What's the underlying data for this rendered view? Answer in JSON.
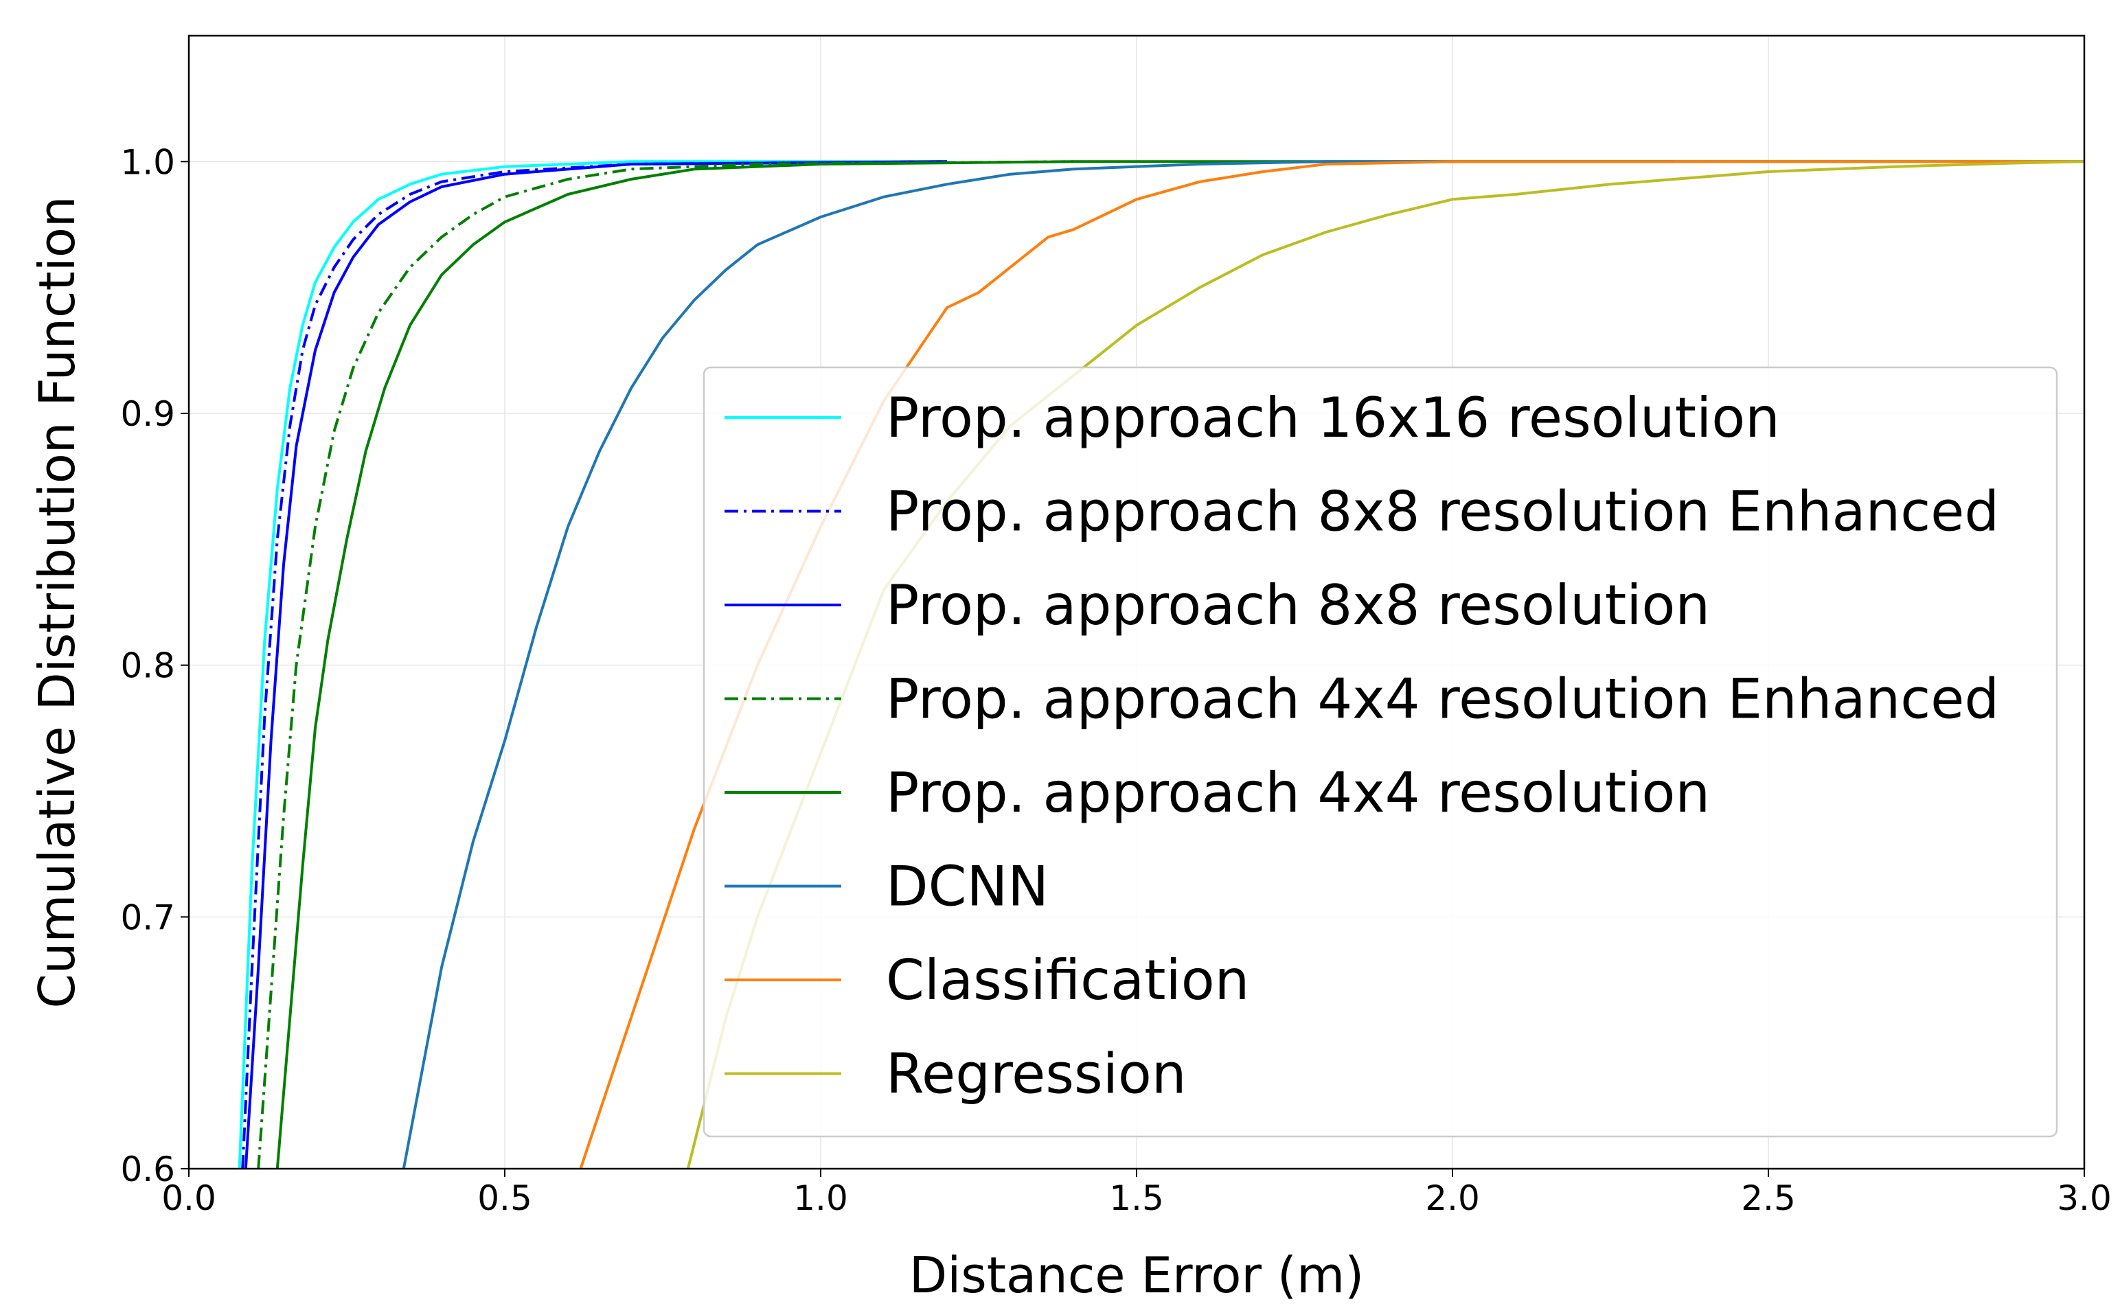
{
  "chart_data": {
    "type": "line",
    "title": "",
    "xlabel": "Distance Error (m)",
    "ylabel": "Cumulative Distribution Function",
    "xlim": [
      0.0,
      3.0
    ],
    "ylim": [
      0.6,
      1.05
    ],
    "xticks": [
      "0.0",
      "0.5",
      "1.0",
      "1.5",
      "2.0",
      "2.5",
      "3.0"
    ],
    "yticks": [
      "0.6",
      "0.7",
      "0.8",
      "0.9",
      "1.0"
    ],
    "grid": true,
    "legend_position": "lower right",
    "series": [
      {
        "name": "Prop. approach 16x16 resolution",
        "color": "#00ffff",
        "dash": "solid",
        "points": [
          [
            0.08,
            0.6
          ],
          [
            0.1,
            0.72
          ],
          [
            0.12,
            0.81
          ],
          [
            0.14,
            0.87
          ],
          [
            0.16,
            0.91
          ],
          [
            0.18,
            0.935
          ],
          [
            0.2,
            0.952
          ],
          [
            0.23,
            0.966
          ],
          [
            0.26,
            0.976
          ],
          [
            0.3,
            0.985
          ],
          [
            0.35,
            0.991
          ],
          [
            0.4,
            0.995
          ],
          [
            0.5,
            0.998
          ],
          [
            0.7,
            1.0
          ],
          [
            1.2,
            1.0
          ]
        ]
      },
      {
        "name": "Prop. approach 8x8 resolution Enhanced",
        "color": "#0000ff",
        "dash": "dashdot",
        "points": [
          [
            0.085,
            0.6
          ],
          [
            0.1,
            0.68
          ],
          [
            0.12,
            0.78
          ],
          [
            0.14,
            0.85
          ],
          [
            0.16,
            0.895
          ],
          [
            0.18,
            0.925
          ],
          [
            0.2,
            0.943
          ],
          [
            0.23,
            0.958
          ],
          [
            0.26,
            0.969
          ],
          [
            0.3,
            0.979
          ],
          [
            0.35,
            0.987
          ],
          [
            0.4,
            0.992
          ],
          [
            0.5,
            0.996
          ],
          [
            0.7,
            0.999
          ],
          [
            1.2,
            1.0
          ]
        ]
      },
      {
        "name": "Prop. approach 8x8 resolution",
        "color": "#0000ff",
        "dash": "solid",
        "points": [
          [
            0.09,
            0.6
          ],
          [
            0.11,
            0.68
          ],
          [
            0.13,
            0.77
          ],
          [
            0.15,
            0.84
          ],
          [
            0.17,
            0.887
          ],
          [
            0.2,
            0.925
          ],
          [
            0.23,
            0.948
          ],
          [
            0.26,
            0.962
          ],
          [
            0.3,
            0.975
          ],
          [
            0.35,
            0.984
          ],
          [
            0.4,
            0.99
          ],
          [
            0.5,
            0.995
          ],
          [
            0.7,
            0.999
          ],
          [
            1.2,
            1.0
          ]
        ]
      },
      {
        "name": "Prop. approach 4x4 resolution Enhanced",
        "color": "#008000",
        "dash": "dashdot",
        "points": [
          [
            0.11,
            0.6
          ],
          [
            0.13,
            0.67
          ],
          [
            0.15,
            0.74
          ],
          [
            0.17,
            0.8
          ],
          [
            0.2,
            0.855
          ],
          [
            0.23,
            0.893
          ],
          [
            0.26,
            0.918
          ],
          [
            0.3,
            0.94
          ],
          [
            0.35,
            0.958
          ],
          [
            0.4,
            0.97
          ],
          [
            0.45,
            0.979
          ],
          [
            0.5,
            0.986
          ],
          [
            0.6,
            0.993
          ],
          [
            0.7,
            0.997
          ],
          [
            0.9,
            0.999
          ],
          [
            1.4,
            1.0
          ]
        ]
      },
      {
        "name": "Prop. approach 4x4 resolution",
        "color": "#008000",
        "dash": "solid",
        "points": [
          [
            0.14,
            0.6
          ],
          [
            0.16,
            0.66
          ],
          [
            0.18,
            0.72
          ],
          [
            0.2,
            0.775
          ],
          [
            0.22,
            0.81
          ],
          [
            0.25,
            0.85
          ],
          [
            0.28,
            0.885
          ],
          [
            0.31,
            0.91
          ],
          [
            0.35,
            0.935
          ],
          [
            0.4,
            0.955
          ],
          [
            0.45,
            0.967
          ],
          [
            0.5,
            0.976
          ],
          [
            0.6,
            0.987
          ],
          [
            0.7,
            0.993
          ],
          [
            0.8,
            0.997
          ],
          [
            1.0,
            0.999
          ],
          [
            1.4,
            1.0
          ],
          [
            3.0,
            1.0
          ]
        ]
      },
      {
        "name": "DCNN",
        "color": "#1f77b4",
        "dash": "solid",
        "points": [
          [
            0.34,
            0.6
          ],
          [
            0.4,
            0.68
          ],
          [
            0.45,
            0.73
          ],
          [
            0.5,
            0.77
          ],
          [
            0.55,
            0.815
          ],
          [
            0.6,
            0.855
          ],
          [
            0.65,
            0.885
          ],
          [
            0.7,
            0.91
          ],
          [
            0.75,
            0.93
          ],
          [
            0.8,
            0.945
          ],
          [
            0.85,
            0.957
          ],
          [
            0.9,
            0.967
          ],
          [
            1.0,
            0.978
          ],
          [
            1.1,
            0.986
          ],
          [
            1.2,
            0.991
          ],
          [
            1.3,
            0.995
          ],
          [
            1.4,
            0.997
          ],
          [
            1.6,
            0.999
          ],
          [
            1.8,
            1.0
          ],
          [
            2.35,
            1.0
          ]
        ]
      },
      {
        "name": "Classification",
        "color": "#ff7f0e",
        "dash": "solid",
        "points": [
          [
            0.62,
            0.6
          ],
          [
            0.7,
            0.66
          ],
          [
            0.8,
            0.735
          ],
          [
            0.9,
            0.8
          ],
          [
            1.0,
            0.855
          ],
          [
            1.1,
            0.905
          ],
          [
            1.2,
            0.942
          ],
          [
            1.25,
            0.948
          ],
          [
            1.3,
            0.958
          ],
          [
            1.36,
            0.97
          ],
          [
            1.4,
            0.973
          ],
          [
            1.45,
            0.979
          ],
          [
            1.5,
            0.985
          ],
          [
            1.6,
            0.992
          ],
          [
            1.7,
            0.996
          ],
          [
            1.8,
            0.999
          ],
          [
            2.0,
            1.0
          ],
          [
            3.0,
            1.0
          ]
        ]
      },
      {
        "name": "Regression",
        "color": "#bcbd22",
        "dash": "solid",
        "points": [
          [
            0.79,
            0.6
          ],
          [
            0.85,
            0.66
          ],
          [
            0.9,
            0.7
          ],
          [
            1.0,
            0.765
          ],
          [
            1.1,
            0.83
          ],
          [
            1.2,
            0.865
          ],
          [
            1.3,
            0.895
          ],
          [
            1.4,
            0.915
          ],
          [
            1.5,
            0.935
          ],
          [
            1.6,
            0.95
          ],
          [
            1.7,
            0.963
          ],
          [
            1.8,
            0.972
          ],
          [
            1.9,
            0.979
          ],
          [
            2.0,
            0.985
          ],
          [
            2.1,
            0.987
          ],
          [
            2.25,
            0.991
          ],
          [
            2.3,
            0.992
          ],
          [
            2.5,
            0.996
          ],
          [
            2.7,
            0.998
          ],
          [
            2.9,
            0.9995
          ],
          [
            3.0,
            1.0
          ]
        ]
      }
    ]
  }
}
